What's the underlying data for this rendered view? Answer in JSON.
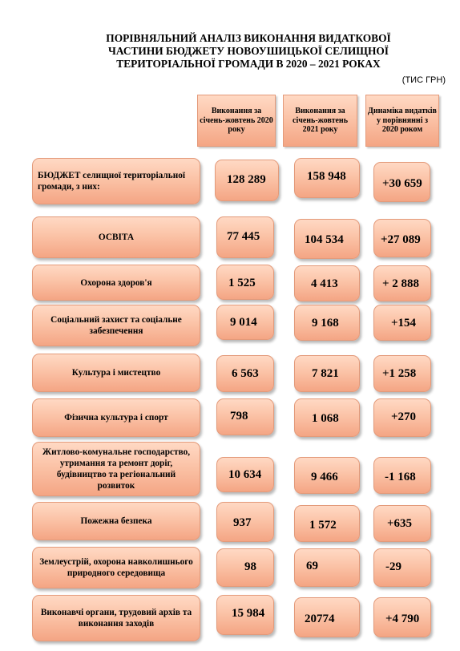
{
  "title": {
    "line1": "ПОРІВНЯЛЬНИЙ АНАЛІЗ ВИКОНАННЯ ВИДАТКОВОЇ",
    "line2": "ЧАСТИНИ БЮДЖЕТУ НОВОУШИЦЬКОЇ СЕЛИЩНОЇ",
    "line3": "ТЕРИТОРІАЛЬНОЇ ГРОМАДИ В 2020 – 2021 РОКАХ"
  },
  "units": "(ТИС ГРН)",
  "headers": {
    "col1": "Виконання за січень-жовтень 2020 року",
    "col2": "Виконання за січень-жовтень 2021 року",
    "col3": "Динаміка видатків у порівнянні з 2020 роком"
  },
  "rows": [
    {
      "label": "БЮДЖЕТ селищної територіальної громади, з них:",
      "v2020": "128 289",
      "v2021": "158 948",
      "change": "+30 659"
    },
    {
      "label": "ОСВІТА",
      "v2020": "77 445",
      "v2021": "104 534",
      "change": "+27 089"
    },
    {
      "label": "Охорона здоров'я",
      "v2020": "1 525",
      "v2021": "4 413",
      "change": "+ 2 888"
    },
    {
      "label": "Соціальний захист та соціальне забезпечення",
      "v2020": "9 014",
      "v2021": "9 168",
      "change": "+154"
    },
    {
      "label": "Культура і мистецтво",
      "v2020": "6 563",
      "v2021": "7 821",
      "change": "+1 258"
    },
    {
      "label": "Фізична культура і спорт",
      "v2020": "798",
      "v2021": "1 068",
      "change": "+270"
    },
    {
      "label": "Житлово-комунальне господарство, утримання та ремонт доріг, будівництво та регіональний розвиток",
      "v2020": "10 634",
      "v2021": "9 466",
      "change": "-1 168"
    },
    {
      "label": "Пожежна безпека",
      "v2020": "937",
      "v2021": "1 572",
      "change": "+635"
    },
    {
      "label": "Землеустрій, охорона навколишнього природного середовища",
      "v2020": "98",
      "v2021": "69",
      "change": "-29"
    },
    {
      "label": "Виконавчі органи, трудовий архів та виконання заходів",
      "v2020": "15 984",
      "v2021": "20774",
      "change": "+4 790"
    }
  ],
  "colors": {
    "box_fill": "#fbc3a7",
    "box_border": "#e39a7a"
  }
}
